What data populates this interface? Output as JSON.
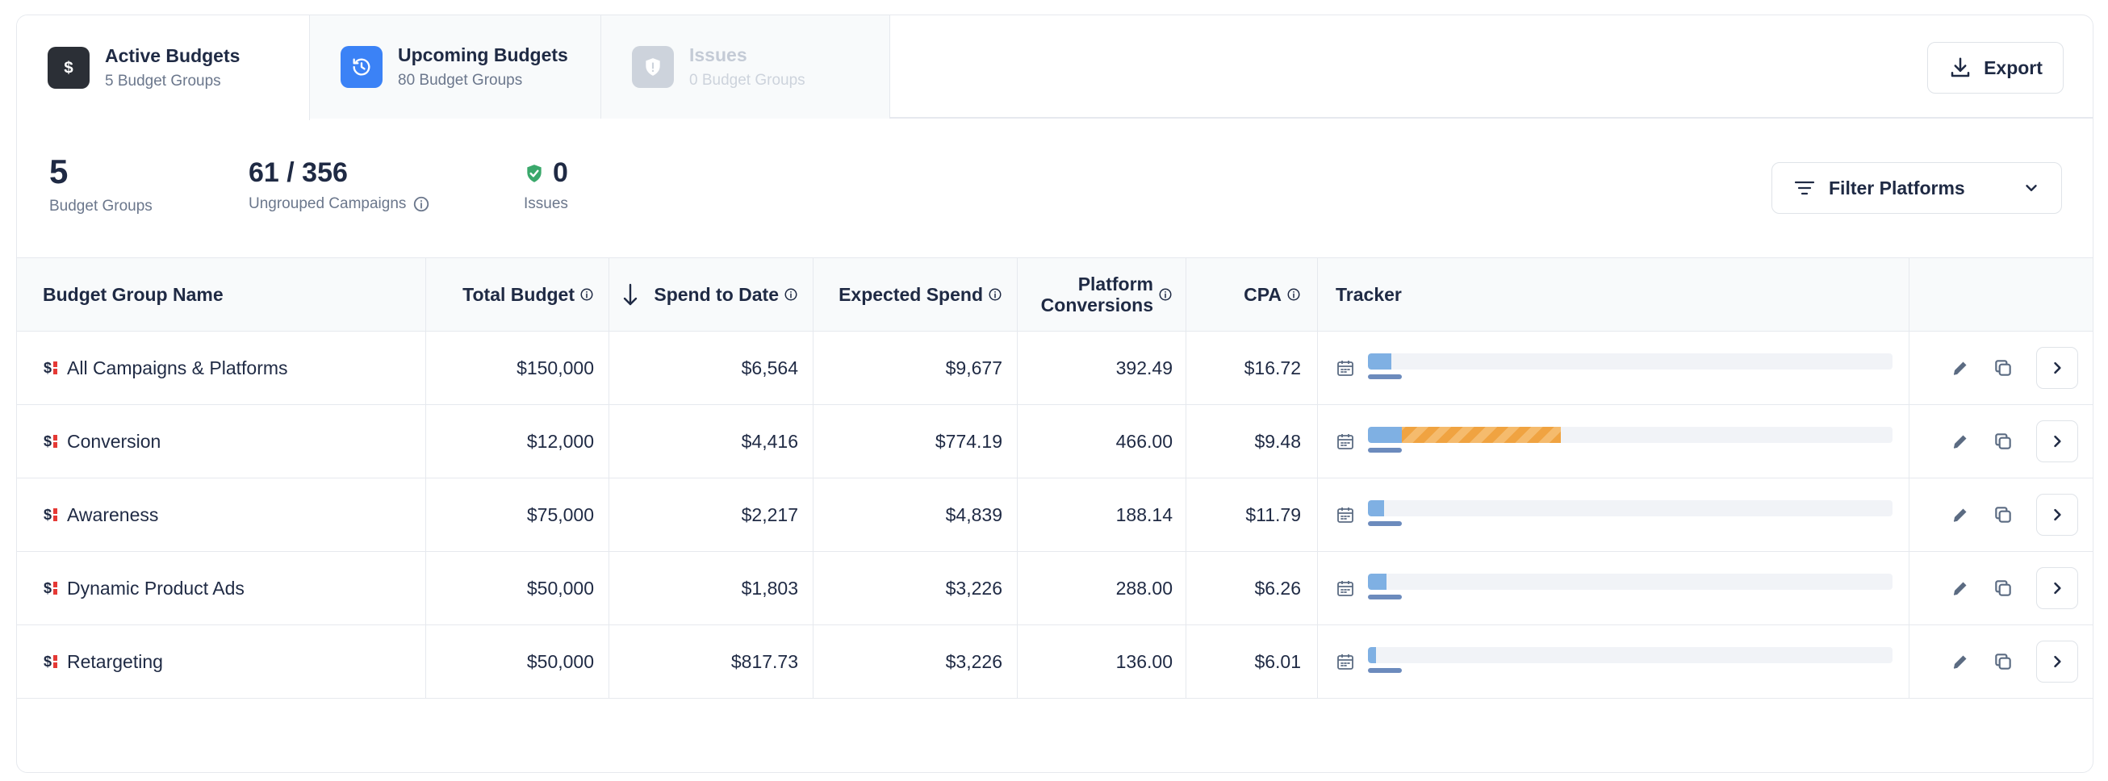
{
  "tabs": [
    {
      "title": "Active Budgets",
      "subtitle": "5 Budget Groups",
      "icon": "dollar-icon",
      "state": "active",
      "color": "#2b2f36"
    },
    {
      "title": "Upcoming Budgets",
      "subtitle": "80 Budget Groups",
      "icon": "clock-history-icon",
      "state": "inactive",
      "color": "#3b82f6"
    },
    {
      "title": "Issues",
      "subtitle": "0 Budget Groups",
      "icon": "shield-icon",
      "state": "disabled",
      "color": "#cdd3dc"
    }
  ],
  "export_label": "Export",
  "summary": {
    "budget_groups": {
      "value": "5",
      "label": "Budget Groups"
    },
    "ungrouped": {
      "value": "61 / 356",
      "label": "Ungrouped Campaigns"
    },
    "issues": {
      "value": "0",
      "label": "Issues"
    }
  },
  "filter_label": "Filter Platforms",
  "table": {
    "headers": {
      "name": "Budget Group Name",
      "total": "Total Budget",
      "spend": "Spend to Date",
      "expected": "Expected Spend",
      "conv_line1": "Platform",
      "conv_line2": "Conversions",
      "cpa": "CPA",
      "tracker": "Tracker"
    },
    "rows": [
      {
        "name": "All Campaigns & Platforms",
        "total": "$150,000",
        "spend": "$6,564",
        "expected": "$9,677",
        "conversions": "392.49",
        "cpa": "$16.72",
        "tracker_spend_fraction": 0.044,
        "tracker_over_fraction": 0
      },
      {
        "name": "Conversion",
        "total": "$12,000",
        "spend": "$4,416",
        "expected": "$774.19",
        "conversions": "466.00",
        "cpa": "$9.48",
        "tracker_spend_fraction": 0.065,
        "tracker_over_fraction": 0.303
      },
      {
        "name": "Awareness",
        "total": "$75,000",
        "spend": "$2,217",
        "expected": "$4,839",
        "conversions": "188.14",
        "cpa": "$11.79",
        "tracker_spend_fraction": 0.03,
        "tracker_over_fraction": 0
      },
      {
        "name": "Dynamic Product Ads",
        "total": "$50,000",
        "spend": "$1,803",
        "expected": "$3,226",
        "conversions": "288.00",
        "cpa": "$6.26",
        "tracker_spend_fraction": 0.036,
        "tracker_over_fraction": 0
      },
      {
        "name": "Retargeting",
        "total": "$50,000",
        "spend": "$817.73",
        "expected": "$3,226",
        "conversions": "136.00",
        "cpa": "$6.01",
        "tracker_spend_fraction": 0.016,
        "tracker_over_fraction": 0
      }
    ]
  },
  "colors": {
    "tracker_spend": "#7fb0e3",
    "tracker_over": "#f0a341",
    "issues_shield": "#3aa86b",
    "text_primary": "#1f2a44",
    "text_muted": "#6b778c"
  }
}
